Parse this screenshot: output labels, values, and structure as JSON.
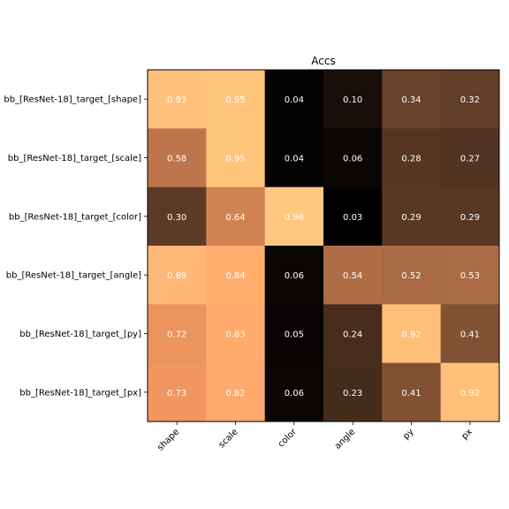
{
  "chart_data": {
    "type": "heatmap",
    "title": "Accs",
    "x_labels": [
      "shape",
      "scale",
      "color",
      "angle",
      "py",
      "px"
    ],
    "y_labels": [
      "bb_[ResNet-18]_target_[shape]",
      "bb_[ResNet-18]_target_[scale]",
      "bb_[ResNet-18]_target_[color]",
      "bb_[ResNet-18]_target_[angle]",
      "bb_[ResNet-18]_target_[py]",
      "bb_[ResNet-18]_target_[px]"
    ],
    "values": [
      [
        0.93,
        0.95,
        0.04,
        0.1,
        0.34,
        0.32
      ],
      [
        0.58,
        0.95,
        0.04,
        0.06,
        0.28,
        0.27
      ],
      [
        0.3,
        0.64,
        0.96,
        0.03,
        0.29,
        0.29
      ],
      [
        0.89,
        0.84,
        0.06,
        0.54,
        0.52,
        0.53
      ],
      [
        0.72,
        0.83,
        0.05,
        0.24,
        0.92,
        0.41
      ],
      [
        0.73,
        0.82,
        0.06,
        0.23,
        0.41,
        0.92
      ]
    ],
    "colormap": "copper",
    "value_range": [
      0.03,
      0.96
    ],
    "cell_text_color": "#ffffff",
    "legend": "none",
    "grid": false
  }
}
